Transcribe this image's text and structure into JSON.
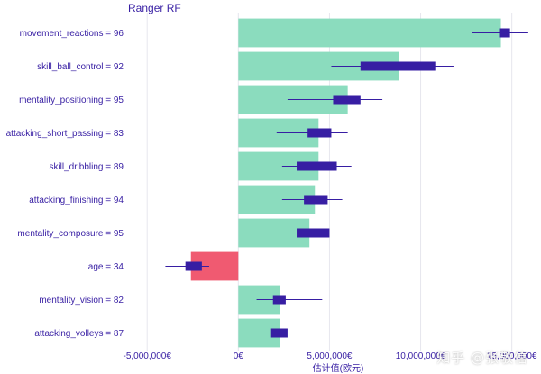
{
  "chart_data": {
    "type": "bar",
    "title": "Ranger RF",
    "xlabel": "估计值(欧元)",
    "xlim": [
      -5900000,
      16500000
    ],
    "xticks": [
      {
        "value": -5000000,
        "label": "-5,000,000€"
      },
      {
        "value": 0,
        "label": "0€"
      },
      {
        "value": 5000000,
        "label": "5,000,000€"
      },
      {
        "value": 10000000,
        "label": "10,000,000€"
      },
      {
        "value": 15000000,
        "label": "15,000,000€"
      }
    ],
    "categories": [
      "movement_reactions = 96",
      "skill_ball_control = 92",
      "mentality_positioning = 95",
      "attacking_short_passing = 83",
      "skill_dribbling = 89",
      "attacking_finishing = 94",
      "mentality_composure = 95",
      "age = 34",
      "mentality_vision = 82",
      "attacking_volleys = 87"
    ],
    "values": [
      14400000,
      8800000,
      6000000,
      4400000,
      4400000,
      4200000,
      3900000,
      -2600000,
      2300000,
      2300000
    ],
    "boxes": [
      {
        "min": 12800000,
        "q1": 14300000,
        "q3": 14900000,
        "max": 15900000
      },
      {
        "min": 5100000,
        "q1": 6700000,
        "q3": 10800000,
        "max": 11800000
      },
      {
        "min": 2700000,
        "q1": 5200000,
        "q3": 6700000,
        "max": 7900000
      },
      {
        "min": 2100000,
        "q1": 3800000,
        "q3": 5100000,
        "max": 6000000
      },
      {
        "min": 2400000,
        "q1": 3200000,
        "q3": 5400000,
        "max": 6200000
      },
      {
        "min": 2400000,
        "q1": 3600000,
        "q3": 4900000,
        "max": 5700000
      },
      {
        "min": 1000000,
        "q1": 3200000,
        "q3": 5000000,
        "max": 6200000
      },
      {
        "min": -4000000,
        "q1": -2900000,
        "q3": -2000000,
        "max": -1600000
      },
      {
        "min": 1000000,
        "q1": 1900000,
        "q3": 2600000,
        "max": 4600000
      },
      {
        "min": 800000,
        "q1": 1800000,
        "q3": 2700000,
        "max": 3700000
      }
    ],
    "colors": {
      "positive": "#8bdcbe",
      "negative": "#f05a71",
      "box": "#371ea3",
      "text": "#371ea3",
      "grid": "#e6e6ee"
    }
  },
  "watermark": "知乎 @张敬信"
}
